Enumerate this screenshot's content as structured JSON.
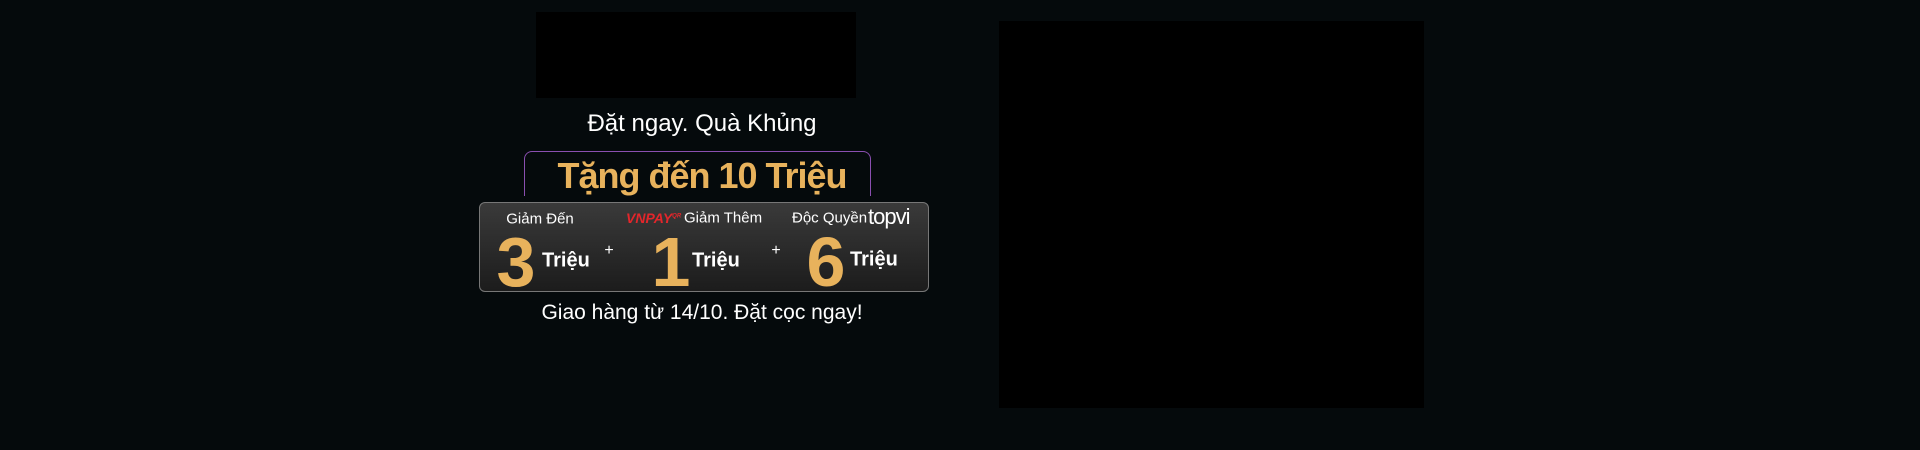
{
  "headline": "Đặt ngay. Quà Khủng",
  "offer": "Tặng đến 10 Triệu",
  "deals": [
    {
      "label": "Giảm Đến",
      "amount": "3",
      "unit": "Triệu"
    },
    {
      "brand": "VNPAY",
      "brand_tag": "QR",
      "label": "Giảm Thêm",
      "amount": "1",
      "unit": "Triệu"
    },
    {
      "label": "Độc Quyền",
      "brand": "topvi",
      "amount": "6",
      "unit": "Triệu"
    }
  ],
  "plus": [
    "+",
    "+"
  ],
  "footer": "Giao hàng từ 14/10. Đặt cọc ngay!"
}
